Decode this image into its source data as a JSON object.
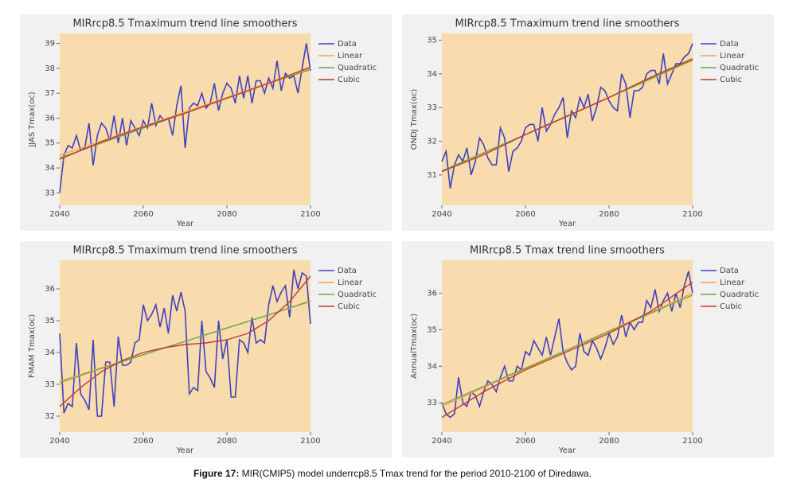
{
  "chart_data": [
    {
      "type": "line",
      "title": "MIRrcp8.5 Tmaximum trend line smoothers",
      "xlabel": "Year",
      "ylabel": "JJAS Tmax(oc)",
      "xlim": [
        2040,
        2100
      ],
      "ylim": [
        32.5,
        39.4
      ],
      "xticks": [
        2040,
        2060,
        2080,
        2100
      ],
      "yticks": [
        33,
        34,
        35,
        36,
        37,
        38,
        39
      ],
      "legend": "right",
      "series": [
        {
          "name": "Data",
          "color": "#4040c0",
          "x": [
            2040,
            2041,
            2042,
            2043,
            2044,
            2045,
            2046,
            2047,
            2048,
            2049,
            2050,
            2051,
            2052,
            2053,
            2054,
            2055,
            2056,
            2057,
            2058,
            2059,
            2060,
            2061,
            2062,
            2063,
            2064,
            2065,
            2066,
            2067,
            2068,
            2069,
            2070,
            2071,
            2072,
            2073,
            2074,
            2075,
            2076,
            2077,
            2078,
            2079,
            2080,
            2081,
            2082,
            2083,
            2084,
            2085,
            2086,
            2087,
            2088,
            2089,
            2090,
            2091,
            2092,
            2093,
            2094,
            2095,
            2096,
            2097,
            2098,
            2099,
            2100
          ],
          "values": [
            33.0,
            34.5,
            34.9,
            34.8,
            35.3,
            34.7,
            34.8,
            35.8,
            34.1,
            35.3,
            35.8,
            35.6,
            35.1,
            36.1,
            35.0,
            36.0,
            34.9,
            35.9,
            35.6,
            35.3,
            35.9,
            35.6,
            36.6,
            35.7,
            36.1,
            35.9,
            36.0,
            35.3,
            36.5,
            37.3,
            34.8,
            36.4,
            36.6,
            36.5,
            37.0,
            36.4,
            36.6,
            37.4,
            36.3,
            37.0,
            37.4,
            37.2,
            36.6,
            37.7,
            36.8,
            37.7,
            36.6,
            37.5,
            37.5,
            37.0,
            37.6,
            37.2,
            38.3,
            37.1,
            37.8,
            37.6,
            37.7,
            37.0,
            38.0,
            39.0,
            37.9
          ]
        },
        {
          "name": "Linear",
          "color": "#ffa040",
          "x": [
            2040,
            2050,
            2060,
            2070,
            2080,
            2090,
            2100
          ],
          "values": [
            34.5,
            35.08,
            35.67,
            36.25,
            36.83,
            37.42,
            38.0
          ]
        },
        {
          "name": "Quadratic",
          "color": "#6aa84f",
          "x": [
            2040,
            2050,
            2060,
            2070,
            2080,
            2090,
            2100
          ],
          "values": [
            34.4,
            35.0,
            35.6,
            36.2,
            36.8,
            37.4,
            37.95
          ]
        },
        {
          "name": "Cubic",
          "color": "#c0392b",
          "x": [
            2040,
            2050,
            2060,
            2070,
            2080,
            2090,
            2100
          ],
          "values": [
            34.35,
            35.05,
            35.65,
            36.2,
            36.8,
            37.4,
            38.05
          ]
        }
      ]
    },
    {
      "type": "line",
      "title": "MIRrcp8.5 Tmaximum trend line smoothers",
      "xlabel": "Year",
      "ylabel": "ONDJ Tmax(oc)",
      "xlim": [
        2040,
        2100
      ],
      "ylim": [
        30.1,
        35.2
      ],
      "xticks": [
        2040,
        2060,
        2080,
        2100
      ],
      "yticks": [
        31,
        32,
        33,
        34,
        35
      ],
      "legend": "right",
      "series": [
        {
          "name": "Data",
          "color": "#4040c0",
          "x": [
            2040,
            2041,
            2042,
            2043,
            2044,
            2045,
            2046,
            2047,
            2048,
            2049,
            2050,
            2051,
            2052,
            2053,
            2054,
            2055,
            2056,
            2057,
            2058,
            2059,
            2060,
            2061,
            2062,
            2063,
            2064,
            2065,
            2066,
            2067,
            2068,
            2069,
            2070,
            2071,
            2072,
            2073,
            2074,
            2075,
            2076,
            2077,
            2078,
            2079,
            2080,
            2081,
            2082,
            2083,
            2084,
            2085,
            2086,
            2087,
            2088,
            2089,
            2090,
            2091,
            2092,
            2093,
            2094,
            2095,
            2096,
            2097,
            2098,
            2099,
            2100
          ],
          "values": [
            31.4,
            31.7,
            30.6,
            31.3,
            31.6,
            31.4,
            31.8,
            31.0,
            31.4,
            32.1,
            31.9,
            31.5,
            31.3,
            31.3,
            32.4,
            32.1,
            31.1,
            31.7,
            31.8,
            32.0,
            32.4,
            32.5,
            32.5,
            32.0,
            33.0,
            32.3,
            32.5,
            32.8,
            33.0,
            33.3,
            32.1,
            32.9,
            32.7,
            33.3,
            33.0,
            33.4,
            32.6,
            33.0,
            33.6,
            33.5,
            33.2,
            33.0,
            32.9,
            34.0,
            33.7,
            32.7,
            33.5,
            33.5,
            33.6,
            34.0,
            34.1,
            34.1,
            33.7,
            34.6,
            33.7,
            34.0,
            34.3,
            34.3,
            34.5,
            34.6,
            34.9
          ]
        },
        {
          "name": "Linear",
          "color": "#ffa040",
          "x": [
            2040,
            2050,
            2060,
            2070,
            2080,
            2090,
            2100
          ],
          "values": [
            31.1,
            31.65,
            32.2,
            32.75,
            33.3,
            33.85,
            34.4
          ]
        },
        {
          "name": "Quadratic",
          "color": "#6aa84f",
          "x": [
            2040,
            2050,
            2060,
            2070,
            2080,
            2090,
            2100
          ],
          "values": [
            31.12,
            31.66,
            32.2,
            32.74,
            33.3,
            33.86,
            34.42
          ]
        },
        {
          "name": "Cubic",
          "color": "#c0392b",
          "x": [
            2040,
            2050,
            2060,
            2070,
            2080,
            2090,
            2100
          ],
          "values": [
            31.1,
            31.6,
            32.2,
            32.75,
            33.3,
            33.9,
            34.45
          ]
        }
      ]
    },
    {
      "type": "line",
      "title": "MIRrcp8.5 Tmaximum trend line smoothers",
      "xlabel": "Year",
      "ylabel": "FMAM Tmax(oc)",
      "xlim": [
        2040,
        2100
      ],
      "ylim": [
        31.5,
        36.9
      ],
      "xticks": [
        2040,
        2060,
        2080,
        2100
      ],
      "yticks": [
        32,
        33,
        34,
        35,
        36
      ],
      "legend": "right",
      "series": [
        {
          "name": "Data",
          "color": "#4040c0",
          "x": [
            2040,
            2041,
            2042,
            2043,
            2044,
            2045,
            2046,
            2047,
            2048,
            2049,
            2050,
            2051,
            2052,
            2053,
            2054,
            2055,
            2056,
            2057,
            2058,
            2059,
            2060,
            2061,
            2062,
            2063,
            2064,
            2065,
            2066,
            2067,
            2068,
            2069,
            2070,
            2071,
            2072,
            2073,
            2074,
            2075,
            2076,
            2077,
            2078,
            2079,
            2080,
            2081,
            2082,
            2083,
            2084,
            2085,
            2086,
            2087,
            2088,
            2089,
            2090,
            2091,
            2092,
            2093,
            2094,
            2095,
            2096,
            2097,
            2098,
            2099,
            2100
          ],
          "values": [
            34.6,
            32.1,
            32.4,
            32.3,
            34.3,
            32.7,
            32.5,
            32.2,
            34.4,
            32.0,
            32.0,
            33.7,
            33.7,
            32.3,
            34.5,
            33.6,
            33.6,
            33.7,
            34.3,
            34.4,
            35.5,
            35.0,
            35.2,
            35.5,
            34.8,
            35.4,
            34.6,
            35.8,
            35.3,
            35.9,
            35.3,
            32.7,
            32.9,
            32.8,
            35.0,
            33.4,
            33.2,
            32.9,
            35.0,
            33.8,
            34.4,
            32.6,
            32.6,
            34.4,
            34.3,
            34.0,
            35.1,
            34.3,
            34.4,
            34.3,
            35.5,
            36.1,
            35.6,
            35.9,
            36.1,
            35.1,
            36.6,
            36.0,
            36.5,
            36.4,
            34.9
          ]
        },
        {
          "name": "Linear",
          "color": "#ffa040",
          "x": [
            2040,
            2050,
            2060,
            2070,
            2080,
            2090,
            2100
          ],
          "values": [
            33.1,
            33.52,
            33.93,
            34.35,
            34.77,
            35.18,
            35.6
          ]
        },
        {
          "name": "Quadratic",
          "color": "#6aa84f",
          "x": [
            2040,
            2050,
            2060,
            2070,
            2080,
            2090,
            2100
          ],
          "values": [
            33.05,
            33.5,
            33.93,
            34.35,
            34.77,
            35.18,
            35.62
          ]
        },
        {
          "name": "Cubic",
          "color": "#c0392b",
          "x": [
            2040,
            2045,
            2050,
            2055,
            2060,
            2065,
            2070,
            2075,
            2080,
            2085,
            2090,
            2095,
            2100
          ],
          "values": [
            32.3,
            32.9,
            33.4,
            33.75,
            34.0,
            34.15,
            34.25,
            34.3,
            34.4,
            34.6,
            35.0,
            35.6,
            36.4
          ]
        }
      ]
    },
    {
      "type": "line",
      "title": "MIRrcp8.5 Tmax trend line smoothers",
      "xlabel": "Year",
      "ylabel": "AnnualTmax(oc)",
      "xlim": [
        2040,
        2100
      ],
      "ylim": [
        32.2,
        36.9
      ],
      "xticks": [
        2040,
        2060,
        2080,
        2100
      ],
      "yticks": [
        33,
        34,
        35,
        36
      ],
      "legend": "right",
      "series": [
        {
          "name": "Data",
          "color": "#4040c0",
          "x": [
            2040,
            2041,
            2042,
            2043,
            2044,
            2045,
            2046,
            2047,
            2048,
            2049,
            2050,
            2051,
            2052,
            2053,
            2054,
            2055,
            2056,
            2057,
            2058,
            2059,
            2060,
            2061,
            2062,
            2063,
            2064,
            2065,
            2066,
            2067,
            2068,
            2069,
            2070,
            2071,
            2072,
            2073,
            2074,
            2075,
            2076,
            2077,
            2078,
            2079,
            2080,
            2081,
            2082,
            2083,
            2084,
            2085,
            2086,
            2087,
            2088,
            2089,
            2090,
            2091,
            2092,
            2093,
            2094,
            2095,
            2096,
            2097,
            2098,
            2099,
            2100
          ],
          "values": [
            33.0,
            32.7,
            32.6,
            32.7,
            33.7,
            33.0,
            32.9,
            33.3,
            33.2,
            32.9,
            33.3,
            33.6,
            33.5,
            33.3,
            33.7,
            34.0,
            33.6,
            33.6,
            34.0,
            33.9,
            34.4,
            34.3,
            34.7,
            34.5,
            34.3,
            34.8,
            34.3,
            34.8,
            35.3,
            34.4,
            34.1,
            33.9,
            34.0,
            34.9,
            34.4,
            34.3,
            34.7,
            34.5,
            34.2,
            34.5,
            34.9,
            34.6,
            34.8,
            35.4,
            34.8,
            35.2,
            35.0,
            35.2,
            35.2,
            35.8,
            35.6,
            36.1,
            35.5,
            35.8,
            36.0,
            35.5,
            36.0,
            35.6,
            36.2,
            36.6,
            36.0
          ]
        },
        {
          "name": "Linear",
          "color": "#ffa040",
          "x": [
            2040,
            2050,
            2060,
            2070,
            2080,
            2090,
            2100
          ],
          "values": [
            32.9,
            33.42,
            33.93,
            34.45,
            34.97,
            35.48,
            36.0
          ]
        },
        {
          "name": "Quadratic",
          "color": "#6aa84f",
          "x": [
            2040,
            2050,
            2060,
            2070,
            2080,
            2090,
            2100
          ],
          "values": [
            32.95,
            33.45,
            33.95,
            34.45,
            34.95,
            35.45,
            35.95
          ]
        },
        {
          "name": "Cubic",
          "color": "#c0392b",
          "x": [
            2040,
            2050,
            2060,
            2070,
            2080,
            2090,
            2100
          ],
          "values": [
            32.6,
            33.3,
            33.9,
            34.4,
            34.9,
            35.5,
            36.3
          ]
        }
      ]
    }
  ],
  "caption": {
    "label": "Figure 17:",
    "text": " MIR(CMIP5) model underrcp8.5 Tmax  trend for the period 2010-2100 of Diredawa."
  }
}
